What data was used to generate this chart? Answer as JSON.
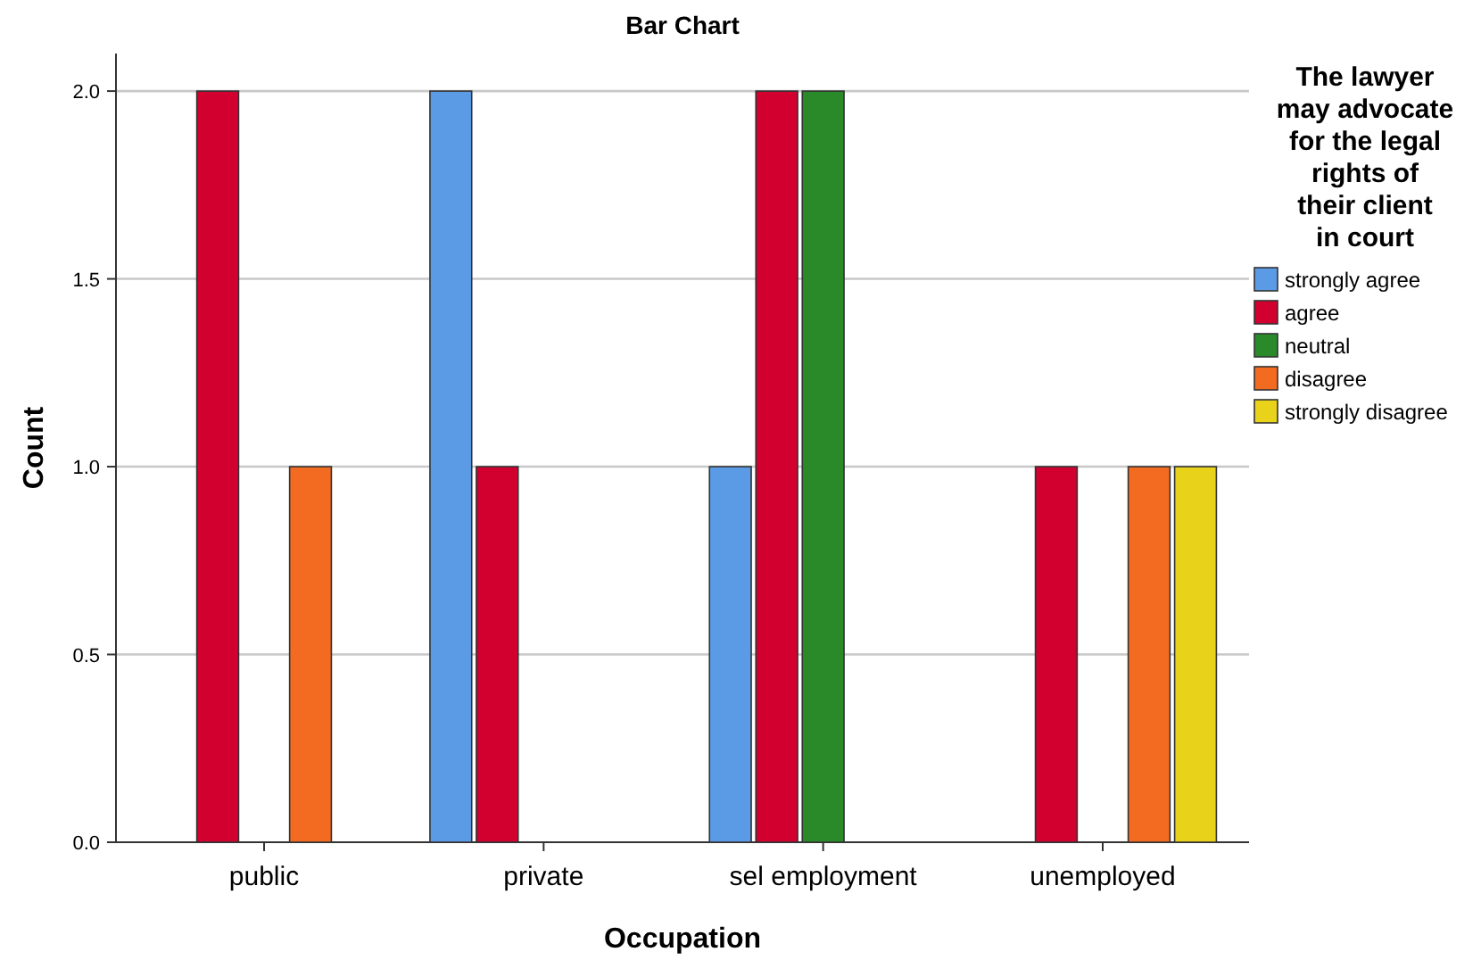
{
  "chart_data": {
    "type": "bar",
    "title": "Bar Chart",
    "xlabel": "Occupation",
    "ylabel": "Count",
    "legend_title": "The lawyer may advocate for the legal rights of their client in court",
    "categories": [
      "public",
      "private",
      "sel employment",
      "unemployed"
    ],
    "series": [
      {
        "name": "strongly agree",
        "color": "#5b9be6",
        "values": [
          null,
          2,
          1,
          null
        ]
      },
      {
        "name": "agree",
        "color": "#d2002e",
        "values": [
          2,
          1,
          2,
          1
        ]
      },
      {
        "name": "neutral",
        "color": "#2a8a2a",
        "values": [
          null,
          null,
          2,
          null
        ]
      },
      {
        "name": "disagree",
        "color": "#f26b21",
        "values": [
          1,
          null,
          null,
          1
        ]
      },
      {
        "name": "strongly disagree",
        "color": "#e8d31a",
        "values": [
          null,
          null,
          null,
          1
        ]
      }
    ],
    "ylim": [
      0,
      2.1
    ],
    "yticks": [
      {
        "value": 0,
        "label": "0.0"
      },
      {
        "value": 0.5,
        "label": "0.5"
      },
      {
        "value": 1,
        "label": "1.0"
      },
      {
        "value": 1.5,
        "label": "1.5"
      },
      {
        "value": 2,
        "label": "2.0"
      }
    ],
    "grid": "y",
    "legend": "right"
  }
}
